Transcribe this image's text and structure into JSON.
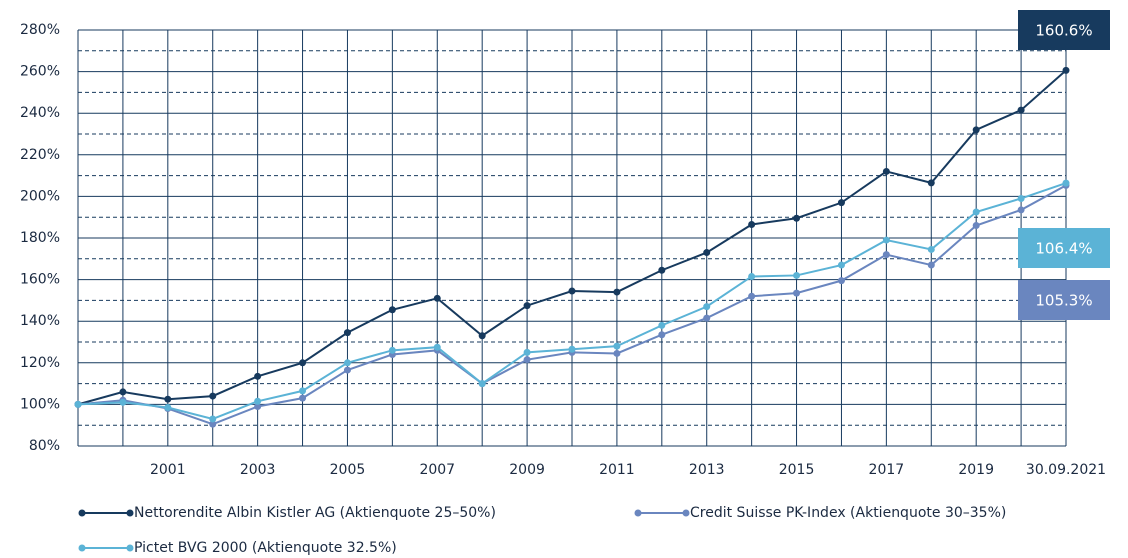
{
  "chart_data": {
    "type": "line",
    "categories": [
      null,
      null,
      "2001",
      null,
      "2003",
      null,
      "2005",
      null,
      "2007",
      null,
      "2009",
      null,
      "2011",
      null,
      "2013",
      null,
      "2015",
      null,
      "2017",
      null,
      "2019",
      null,
      "30.09.2021"
    ],
    "series": [
      {
        "name": "Nettorendite Albin Kistler AG (Aktienquote 25–50%)",
        "color": "#173a5e",
        "values": [
          100,
          106,
          102.5,
          104,
          113.5,
          120,
          134.5,
          145.5,
          151,
          133,
          147.5,
          154.5,
          154,
          164.5,
          173,
          186.5,
          189.5,
          197,
          212,
          206.5,
          232,
          241.5,
          260.6
        ]
      },
      {
        "name": "Credit Suisse PK-Index (Aktienquote 30–35%)",
        "color": "#6a86bf",
        "values": [
          100,
          102,
          98,
          90.5,
          99,
          103,
          116.5,
          124,
          126,
          110,
          121.5,
          125,
          124.5,
          133.5,
          141.5,
          152,
          153.5,
          159.5,
          172,
          167,
          186,
          193.5,
          205.3
        ]
      },
      {
        "name": "Pictet BVG 2000 (Aktienquote 32.5%)",
        "color": "#5bb3d6",
        "values": [
          100,
          101,
          98.5,
          93,
          101.5,
          106.5,
          120,
          126,
          127.5,
          110,
          125,
          126.5,
          128,
          138,
          147,
          161.5,
          162,
          167,
          179,
          174.5,
          192.5,
          199,
          206.4
        ]
      }
    ],
    "annotations": [
      {
        "text": "160.6%",
        "color": "#173a5e"
      },
      {
        "text": "106.4%",
        "color": "#5bb3d6"
      },
      {
        "text": "105.3%",
        "color": "#6a86bf"
      }
    ],
    "ylim": [
      80,
      280
    ],
    "yticks": [
      {
        "value": 80,
        "label": "80%"
      },
      {
        "value": 100,
        "label": "100%"
      },
      {
        "value": 120,
        "label": "120%"
      },
      {
        "value": 140,
        "label": "140%"
      },
      {
        "value": 160,
        "label": "160%"
      },
      {
        "value": 180,
        "label": "180%"
      },
      {
        "value": 200,
        "label": "200%"
      },
      {
        "value": 220,
        "label": "220%"
      },
      {
        "value": 240,
        "label": "240%"
      },
      {
        "value": 260,
        "label": "260%"
      },
      {
        "value": 280,
        "label": "280%"
      }
    ],
    "y_minor_ticks": [
      90,
      110,
      130,
      150,
      170,
      190,
      210,
      230,
      250,
      270
    ],
    "grid": true,
    "legend": "bottom"
  }
}
